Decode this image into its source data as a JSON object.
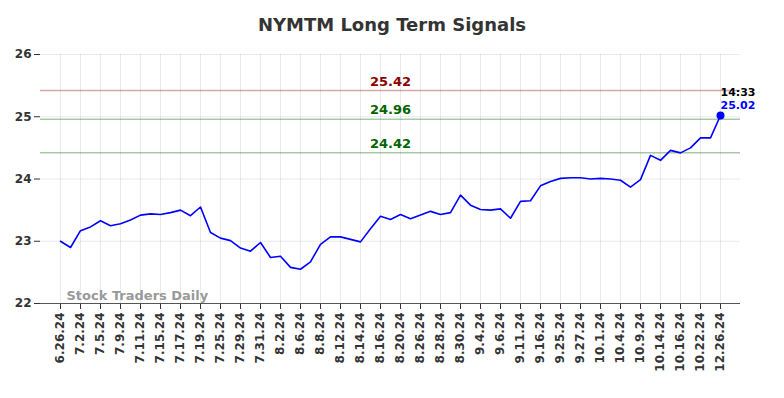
{
  "chart_data": {
    "type": "line",
    "title": "NYMTM Long Term Signals",
    "categories": [
      "6.26.24",
      null,
      "7.2.24",
      null,
      "7.5.24",
      null,
      "7.9.24",
      null,
      "7.11.24",
      null,
      "7.15.24",
      null,
      "7.17.24",
      null,
      "7.19.24",
      null,
      "7.25.24",
      null,
      "7.29.24",
      null,
      "7.31.24",
      null,
      "8.2.24",
      null,
      "8.6.24",
      null,
      "8.8.24",
      null,
      "8.12.24",
      null,
      "8.14.24",
      null,
      "8.16.24",
      null,
      "8.20.24",
      null,
      "8.26.24",
      null,
      "8.28.24",
      null,
      "8.30.24",
      null,
      "9.4.24",
      null,
      "9.6.24",
      null,
      "9.11.24",
      null,
      "9.16.24",
      null,
      "9.25.24",
      null,
      "9.27.24",
      null,
      "10.1.24",
      null,
      "10.4.24",
      null,
      "10.9.24",
      null,
      "10.14.24",
      null,
      "10.16.24",
      null,
      "10.22.24",
      null,
      "12.26.24"
    ],
    "values": [
      23.0,
      22.9,
      23.17,
      23.23,
      23.33,
      23.25,
      23.28,
      23.34,
      23.42,
      23.44,
      23.43,
      23.46,
      23.5,
      23.41,
      23.55,
      23.14,
      23.05,
      23.01,
      22.89,
      22.84,
      22.98,
      22.74,
      22.76,
      22.58,
      22.55,
      22.67,
      22.95,
      23.07,
      23.07,
      23.03,
      22.99,
      23.2,
      23.4,
      23.35,
      23.43,
      23.36,
      23.42,
      23.48,
      23.43,
      23.46,
      23.74,
      23.58,
      23.51,
      23.5,
      23.52,
      23.37,
      23.64,
      23.65,
      23.89,
      23.96,
      24.01,
      24.02,
      24.02,
      24.0,
      24.01,
      24.0,
      23.98,
      23.87,
      23.99,
      24.38,
      24.3,
      24.46,
      24.42,
      24.5,
      24.66,
      24.66,
      25.02
    ],
    "color": "#0000ff",
    "ylim": [
      22,
      26
    ],
    "yticks": [
      22,
      23,
      24,
      25,
      26
    ],
    "grid": true,
    "reference_lines": [
      {
        "value": 25.42,
        "color": "#8b0000"
      },
      {
        "value": 24.96,
        "color": "#006400"
      },
      {
        "value": 24.42,
        "color": "#006400"
      }
    ],
    "time_label": "14:33",
    "watermark": "Stock Traders Daily"
  }
}
